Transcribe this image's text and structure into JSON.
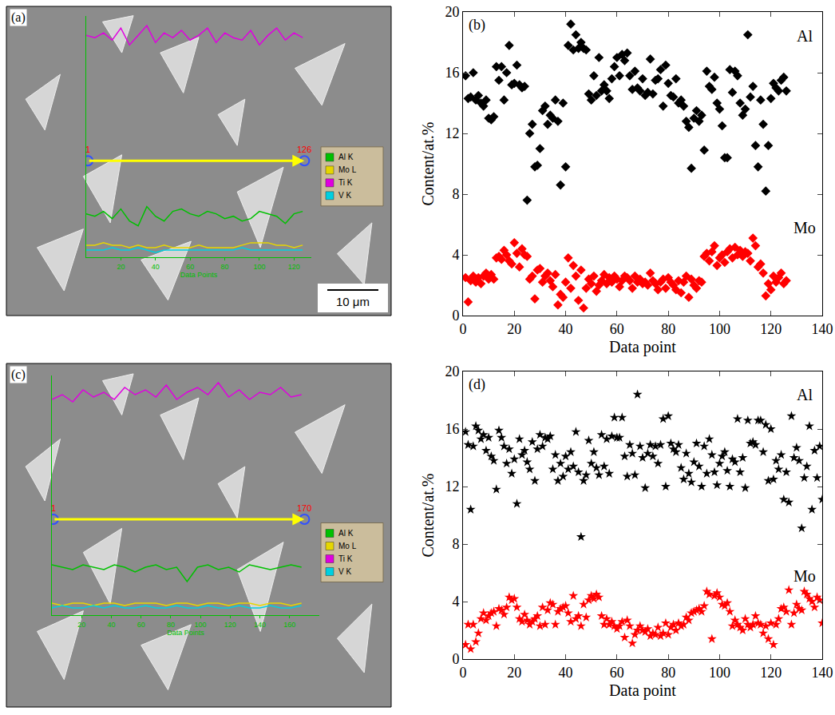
{
  "chart_data": [
    {
      "type": "line",
      "label": "(a)",
      "x_label": "Data Points",
      "tick_labels": "x",
      "xlim": [
        0,
        130
      ],
      "xticks": [
        20,
        40,
        60,
        80,
        100,
        120
      ],
      "ylim": [
        0,
        100
      ],
      "scan_start": 1,
      "scan_end": 126,
      "scale_bar": "10 μm",
      "legend": "right",
      "x": [
        0,
        5,
        10,
        15,
        20,
        25,
        30,
        35,
        40,
        45,
        50,
        55,
        60,
        65,
        70,
        75,
        80,
        85,
        90,
        95,
        100,
        105,
        110,
        115,
        120,
        125
      ],
      "series": [
        {
          "name": "Al K",
          "color": "#00c000",
          "values": [
            18,
            17,
            19,
            16,
            20,
            15,
            13,
            21,
            17,
            15,
            19,
            20,
            18,
            17,
            19,
            18,
            16,
            17,
            15,
            16,
            19,
            18,
            17,
            14,
            18,
            19
          ]
        },
        {
          "name": "Mo L",
          "color": "#e6d600",
          "values": [
            5,
            5,
            6,
            5,
            5,
            4,
            5,
            4,
            4,
            5,
            4,
            4,
            4,
            5,
            4,
            4,
            4,
            4,
            5,
            6,
            6,
            6,
            5,
            5,
            4,
            5
          ]
        },
        {
          "name": "Ti K",
          "color": "#e000e0",
          "values": [
            92,
            91,
            93,
            90,
            95,
            88,
            92,
            96,
            89,
            93,
            91,
            94,
            90,
            92,
            95,
            89,
            93,
            91,
            90,
            94,
            88,
            92,
            95,
            90,
            93,
            91
          ]
        },
        {
          "name": "V K",
          "color": "#00d0e0",
          "values": [
            3,
            3,
            3,
            4,
            3,
            3,
            4,
            3,
            2,
            3,
            3,
            3,
            3,
            3,
            3,
            3,
            3,
            3,
            4,
            3,
            3,
            3,
            3,
            3,
            3,
            3
          ]
        }
      ]
    },
    {
      "type": "scatter",
      "label": "(b)",
      "x_label": "Data point",
      "y_label": "Content/at.%",
      "xlim": [
        0,
        140
      ],
      "xticks": [
        0,
        20,
        40,
        60,
        80,
        100,
        120,
        140
      ],
      "ylim": [
        0,
        20
      ],
      "yticks": [
        0,
        4,
        8,
        12,
        16,
        20
      ],
      "x": [
        1,
        2,
        3,
        4,
        5,
        6,
        7,
        8,
        9,
        10,
        11,
        12,
        13,
        14,
        15,
        16,
        17,
        18,
        19,
        20,
        21,
        22,
        23,
        24,
        25,
        26,
        27,
        28,
        29,
        30,
        31,
        32,
        33,
        34,
        35,
        36,
        37,
        38,
        39,
        40,
        41,
        42,
        43,
        44,
        45,
        46,
        47,
        48,
        49,
        50,
        51,
        52,
        53,
        54,
        55,
        56,
        57,
        58,
        59,
        60,
        61,
        62,
        63,
        64,
        65,
        66,
        67,
        68,
        69,
        70,
        71,
        72,
        73,
        74,
        75,
        76,
        77,
        78,
        79,
        80,
        81,
        82,
        83,
        84,
        85,
        86,
        87,
        88,
        89,
        90,
        91,
        92,
        93,
        94,
        95,
        96,
        97,
        98,
        99,
        100,
        101,
        102,
        103,
        104,
        105,
        106,
        107,
        108,
        109,
        110,
        111,
        112,
        113,
        114,
        115,
        116,
        117,
        118,
        119,
        120,
        121,
        122,
        123,
        124,
        125,
        126
      ],
      "series": [
        {
          "name": "Al",
          "color": "#000000",
          "marker": "diamond",
          "values": [
            15.8,
            14.3,
            14.4,
            16.0,
            14.2,
            14.5,
            14.0,
            13.8,
            14.2,
            13.0,
            12.9,
            13.1,
            16.4,
            15.5,
            16.4,
            14.2,
            16.0,
            17.8,
            15.2,
            15.3,
            16.5,
            15.2,
            15.0,
            15.1,
            7.6,
            12.0,
            12.6,
            9.8,
            9.9,
            11.0,
            13.5,
            13.8,
            12.6,
            13.2,
            13.0,
            14.2,
            12.8,
            8.6,
            14.0,
            9.8,
            17.8,
            19.2,
            17.5,
            18.5,
            17.6,
            18.0,
            17.6,
            17.5,
            14.6,
            14.2,
            15.8,
            14.5,
            17.0,
            14.8,
            15.2,
            14.8,
            14.3,
            15.6,
            16.4,
            17.0,
            15.8,
            17.2,
            16.8,
            17.3,
            15.8,
            14.9,
            16.1,
            15.0,
            14.8,
            15.6,
            14.5,
            14.7,
            16.9,
            14.6,
            15.5,
            15.6,
            16.2,
            13.8,
            16.5,
            15.3,
            14.5,
            14.4,
            15.6,
            14.0,
            14.2,
            13.8,
            12.8,
            12.4,
            9.7,
            13.0,
            13.5,
            12.8,
            13.2,
            10.9,
            16.1,
            15.1,
            14.9,
            15.7,
            14.0,
            13.6,
            12.5,
            10.4,
            10.4,
            16.2,
            14.7,
            16.1,
            15.8,
            14.0,
            13.2,
            13.6,
            18.5,
            14.4,
            15.1,
            11.2,
            9.8,
            14.2,
            12.6,
            8.2,
            11.2,
            14.3,
            15.3,
            15.0,
            14.8,
            15.5,
            15.7,
            14.8
          ]
        },
        {
          "name": "Mo",
          "color": "#ff0000",
          "marker": "diamond",
          "values": [
            2.5,
            0.9,
            2.3,
            2.6,
            2.2,
            2.5,
            2.1,
            2.6,
            2.8,
            2.4,
            2.7,
            2.4,
            3.8,
            3.9,
            3.7,
            4.3,
            4.0,
            3.6,
            3.4,
            4.8,
            4.1,
            3.2,
            4.4,
            4.0,
            3.9,
            2.4,
            2.6,
            1.1,
            3.0,
            3.1,
            2.2,
            2.6,
            2.8,
            2.3,
            1.9,
            2.7,
            0.7,
            1.4,
            1.2,
            2.2,
            3.8,
            1.8,
            3.3,
            2.6,
            1.0,
            3.0,
            0.5,
            1.8,
            2.4,
            2.1,
            2.6,
            1.6,
            2.0,
            2.3,
            2.7,
            2.1,
            2.5,
            2.2,
            2.6,
            2.4,
            1.9,
            2.3,
            2.6,
            2.5,
            2.3,
            1.8,
            2.6,
            2.2,
            2.4,
            2.1,
            2.2,
            2.0,
            2.8,
            2.3,
            2.1,
            1.7,
            2.2,
            2.4,
            1.8,
            2.5,
            2.2,
            2.0,
            1.7,
            2.3,
            1.5,
            2.2,
            2.6,
            1.2,
            2.4,
            2.0,
            1.8,
            2.3,
            2.2,
            3.9,
            4.1,
            3.6,
            4.2,
            4.6,
            3.3,
            3.8,
            4.0,
            3.5,
            4.2,
            4.4,
            3.8,
            4.5,
            4.0,
            4.3,
            3.9,
            4.2,
            4.1,
            3.6,
            5.1,
            4.6,
            3.2,
            3.4,
            2.8,
            1.3,
            2.1,
            1.7,
            2.6,
            2.2,
            2.5,
            2.8,
            2.1,
            2.3
          ]
        }
      ]
    },
    {
      "type": "line",
      "label": "(c)",
      "x_label": "Data Points",
      "tick_labels": "x",
      "xlim": [
        0,
        180
      ],
      "xticks": [
        20,
        40,
        60,
        80,
        100,
        120,
        140,
        160
      ],
      "ylim": [
        0,
        100
      ],
      "scan_start": 1,
      "scan_end": 170,
      "legend": "right",
      "x": [
        0,
        7,
        14,
        21,
        28,
        35,
        42,
        49,
        56,
        63,
        70,
        77,
        84,
        91,
        98,
        105,
        112,
        119,
        126,
        133,
        140,
        147,
        154,
        161,
        168
      ],
      "series": [
        {
          "name": "Al K",
          "color": "#00c000",
          "values": [
            21,
            20,
            19,
            21,
            20,
            19,
            21,
            20,
            18,
            20,
            21,
            19,
            20,
            14,
            20,
            21,
            19,
            20,
            18,
            21,
            20,
            19,
            20,
            21,
            20
          ]
        },
        {
          "name": "Mo L",
          "color": "#e6d600",
          "values": [
            5,
            4,
            5,
            5,
            4,
            5,
            5,
            4,
            5,
            5,
            5,
            4,
            5,
            5,
            4,
            5,
            5,
            4,
            5,
            5,
            4,
            5,
            5,
            4,
            5
          ]
        },
        {
          "name": "Ti K",
          "color": "#e000e0",
          "values": [
            90,
            92,
            89,
            94,
            91,
            93,
            90,
            95,
            92,
            94,
            91,
            96,
            90,
            93,
            95,
            92,
            97,
            91,
            94,
            90,
            93,
            92,
            95,
            91,
            92
          ]
        },
        {
          "name": "V K",
          "color": "#00d0e0",
          "values": [
            3,
            4,
            3,
            3,
            4,
            3,
            4,
            3,
            3,
            4,
            3,
            3,
            4,
            3,
            3,
            4,
            3,
            3,
            4,
            3,
            3,
            4,
            3,
            3,
            4
          ]
        }
      ]
    },
    {
      "type": "scatter",
      "label": "(d)",
      "x_label": "Data point",
      "y_label": "Content/at.%",
      "xlim": [
        0,
        140
      ],
      "xticks": [
        0,
        20,
        40,
        60,
        80,
        100,
        120,
        140
      ],
      "ylim": [
        0,
        20
      ],
      "yticks": [
        0,
        4,
        8,
        12,
        16,
        20
      ],
      "x": [
        1,
        2,
        3,
        4,
        5,
        6,
        7,
        8,
        9,
        10,
        11,
        12,
        13,
        14,
        15,
        16,
        17,
        18,
        19,
        20,
        21,
        22,
        23,
        24,
        25,
        26,
        27,
        28,
        29,
        30,
        31,
        32,
        33,
        34,
        35,
        36,
        37,
        38,
        39,
        40,
        41,
        42,
        43,
        44,
        45,
        46,
        47,
        48,
        49,
        50,
        51,
        52,
        53,
        54,
        55,
        56,
        57,
        58,
        59,
        60,
        61,
        62,
        63,
        64,
        65,
        66,
        67,
        68,
        69,
        70,
        71,
        72,
        73,
        74,
        75,
        76,
        77,
        78,
        79,
        80,
        81,
        82,
        83,
        84,
        85,
        86,
        87,
        88,
        89,
        90,
        91,
        92,
        93,
        94,
        95,
        96,
        97,
        98,
        99,
        100,
        101,
        102,
        103,
        104,
        105,
        106,
        107,
        108,
        109,
        110,
        111,
        112,
        113,
        114,
        115,
        116,
        117,
        118,
        119,
        120,
        121,
        122,
        123,
        124,
        125,
        126,
        127,
        128,
        129,
        130,
        131,
        132,
        133,
        134,
        135,
        136,
        137,
        138,
        139,
        140
      ],
      "series": [
        {
          "name": "Al",
          "color": "#000000",
          "marker": "star",
          "values": [
            15.8,
            14.9,
            10.4,
            14.8,
            16.2,
            15.9,
            15.3,
            15.6,
            14.5,
            15.4,
            14.1,
            13.8,
            11.8,
            15.9,
            15.4,
            14.8,
            13.6,
            14.6,
            12.9,
            13.9,
            10.8,
            15.3,
            14.2,
            14.5,
            13.7,
            13.2,
            15.1,
            12.4,
            14.6,
            15.6,
            14.8,
            15.4,
            15.3,
            15.5,
            13.2,
            14.2,
            12.4,
            13.6,
            12.7,
            14.1,
            13.2,
            14.4,
            13.4,
            15.8,
            13.0,
            8.5,
            12.4,
            12.8,
            15.2,
            13.6,
            14.4,
            13.3,
            12.8,
            15.6,
            13.4,
            15.3,
            12.9,
            15.5,
            16.8,
            15.4,
            15.4,
            16.8,
            14.1,
            12.7,
            14.9,
            14.3,
            12.8,
            18.4,
            14.8,
            14.0,
            11.9,
            14.3,
            14.9,
            14.1,
            14.8,
            13.6,
            14.9,
            16.7,
            12.0,
            16.9,
            15.0,
            14.6,
            14.4,
            14.9,
            13.3,
            12.5,
            14.3,
            12.9,
            12.3,
            13.7,
            15.0,
            13.4,
            12.0,
            14.8,
            12.9,
            15.3,
            14.2,
            13.0,
            12.1,
            13.6,
            14.1,
            14.4,
            13.1,
            12.0,
            13.9,
            13.7,
            16.7,
            13.0,
            14.0,
            11.9,
            16.6,
            15.0,
            15.1,
            14.9,
            16.6,
            16.6,
            14.4,
            16.3,
            12.4,
            16.0,
            12.5,
            13.8,
            13.2,
            14.2,
            11.1,
            13.0,
            10.9,
            16.9,
            14.0,
            14.7,
            13.8,
            9.1,
            12.6,
            13.4,
            16.2,
            10.4,
            14.5,
            12.6,
            14.8,
            11.1
          ]
        },
        {
          "name": "Mo",
          "color": "#ff0000",
          "marker": "star",
          "values": [
            1.0,
            2.4,
            0.7,
            2.4,
            1.2,
            1.8,
            2.8,
            3.2,
            2.7,
            3.0,
            3.2,
            3.3,
            2.3,
            3.5,
            3.4,
            3.1,
            3.6,
            4.3,
            4.1,
            4.2,
            3.6,
            2.8,
            2.6,
            3.1,
            2.7,
            2.4,
            2.6,
            2.8,
            3.0,
            2.3,
            3.6,
            2.4,
            3.4,
            3.9,
            3.8,
            2.4,
            3.3,
            3.5,
            3.6,
            3.7,
            3.2,
            2.6,
            4.4,
            2.8,
            3.0,
            2.3,
            3.8,
            2.9,
            4.1,
            4.4,
            4.2,
            4.5,
            4.3,
            3.0,
            2.4,
            2.8,
            2.4,
            2.6,
            2.3,
            2.1,
            2.3,
            2.6,
            1.5,
            2.7,
            2.3,
            1.1,
            1.7,
            2.0,
            2.3,
            2.0,
            1.9,
            2.1,
            1.6,
            1.8,
            1.7,
            2.2,
            1.6,
            1.8,
            2.5,
            1.7,
            2.2,
            2.4,
            2.0,
            2.5,
            2.3,
            2.4,
            2.9,
            2.7,
            3.2,
            3.3,
            3.4,
            3.5,
            3.3,
            3.7,
            4.7,
            4.5,
            1.4,
            4.4,
            4.6,
            4.3,
            3.8,
            3.7,
            3.9,
            3.3,
            2.3,
            2.7,
            2.4,
            2.2,
            2.0,
            2.8,
            2.4,
            2.2,
            2.4,
            3.0,
            2.5,
            2.4,
            1.8,
            2.3,
            1.4,
            2.5,
            1.0,
            2.4,
            2.8,
            3.5,
            3.6,
            3.3,
            4.8,
            2.4,
            3.2,
            3.8,
            3.5,
            3.4,
            4.7,
            4.5,
            4.2,
            4.0,
            3.6,
            4.3,
            4.1,
            2.5
          ]
        }
      ]
    }
  ]
}
